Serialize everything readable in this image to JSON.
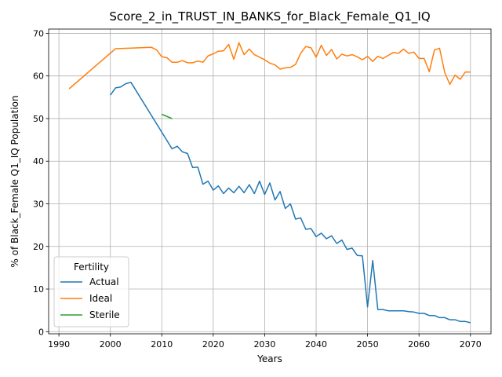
{
  "chart_data": {
    "type": "line",
    "title": "Score_2_in_TRUST_IN_BANKS_for_Black_Female_Q1_IQ",
    "xlabel": "Years",
    "ylabel": "% of Black_Female Q1_IQ Population",
    "xlim": [
      1988,
      2074
    ],
    "ylim": [
      -0.5,
      71
    ],
    "xticks": [
      1990,
      2000,
      2010,
      2020,
      2030,
      2040,
      2050,
      2060,
      2070
    ],
    "yticks": [
      0,
      10,
      20,
      30,
      40,
      50,
      60,
      70
    ],
    "grid": true,
    "legend": {
      "title": "Fertility",
      "position": "lower-left"
    },
    "series": [
      {
        "name": "Actual",
        "color": "#1f77b4",
        "x": [
          2000,
          2001,
          2002,
          2003,
          2004,
          2012,
          2013,
          2014,
          2015,
          2016,
          2017,
          2018,
          2019,
          2020,
          2021,
          2022,
          2023,
          2024,
          2025,
          2026,
          2027,
          2028,
          2029,
          2030,
          2031,
          2032,
          2033,
          2034,
          2035,
          2036,
          2037,
          2038,
          2039,
          2040,
          2041,
          2042,
          2043,
          2044,
          2045,
          2046,
          2047,
          2048,
          2049,
          2050,
          2051,
          2052,
          2053,
          2054,
          2055,
          2056,
          2057,
          2058,
          2059,
          2060,
          2061,
          2062,
          2063,
          2064,
          2065,
          2066,
          2067,
          2068,
          2069,
          2070
        ],
        "y": [
          55.5,
          57.2,
          57.4,
          58.2,
          58.5,
          42.9,
          43.5,
          42.2,
          41.8,
          38.5,
          38.6,
          34.6,
          35.3,
          33.2,
          34.2,
          32.4,
          33.7,
          32.6,
          34.1,
          32.6,
          34.5,
          32.4,
          35.3,
          32.2,
          34.9,
          30.9,
          32.9,
          28.9,
          30.0,
          26.4,
          26.7,
          24.0,
          24.2,
          22.3,
          23.1,
          21.8,
          22.5,
          20.7,
          21.5,
          19.3,
          19.6,
          17.9,
          17.8,
          5.8,
          16.7,
          5.2,
          5.2,
          4.9,
          4.9,
          4.9,
          4.9,
          4.7,
          4.6,
          4.3,
          4.3,
          3.8,
          3.8,
          3.3,
          3.3,
          2.8,
          2.8,
          2.4,
          2.4,
          2.1
        ]
      },
      {
        "name": "Ideal",
        "color": "#ff7f0e",
        "x": [
          1992,
          2001,
          2008,
          2009,
          2010,
          2011,
          2012,
          2013,
          2014,
          2015,
          2016,
          2017,
          2018,
          2019,
          2020,
          2021,
          2022,
          2023,
          2024,
          2025,
          2026,
          2027,
          2028,
          2029,
          2030,
          2031,
          2032,
          2033,
          2034,
          2035,
          2036,
          2037,
          2038,
          2039,
          2040,
          2041,
          2042,
          2043,
          2044,
          2045,
          2046,
          2047,
          2048,
          2049,
          2050,
          2051,
          2052,
          2053,
          2054,
          2055,
          2056,
          2057,
          2058,
          2059,
          2060,
          2061,
          2062,
          2063,
          2064,
          2065,
          2066,
          2067,
          2068,
          2069,
          2070
        ],
        "y": [
          57.0,
          66.4,
          66.7,
          66.1,
          64.5,
          64.3,
          63.2,
          63.2,
          63.6,
          63.1,
          63.1,
          63.5,
          63.2,
          64.7,
          65.2,
          65.8,
          65.9,
          67.4,
          63.9,
          67.8,
          65.0,
          66.3,
          65.0,
          64.4,
          63.8,
          63.0,
          62.6,
          61.6,
          61.9,
          62.0,
          62.7,
          65.3,
          66.9,
          66.6,
          64.4,
          67.2,
          64.8,
          66.2,
          64.0,
          65.1,
          64.7,
          65.0,
          64.5,
          63.8,
          64.6,
          63.4,
          64.6,
          64.1,
          64.8,
          65.5,
          65.3,
          66.3,
          65.3,
          65.6,
          64.1,
          64.1,
          61.0,
          66.1,
          66.5,
          60.8,
          58.0,
          60.2,
          59.2,
          60.9,
          60.9
        ]
      },
      {
        "name": "Sterile",
        "color": "#2ca02c",
        "x": [
          2010,
          2012
        ],
        "y": [
          51.0,
          50.0
        ]
      }
    ]
  }
}
